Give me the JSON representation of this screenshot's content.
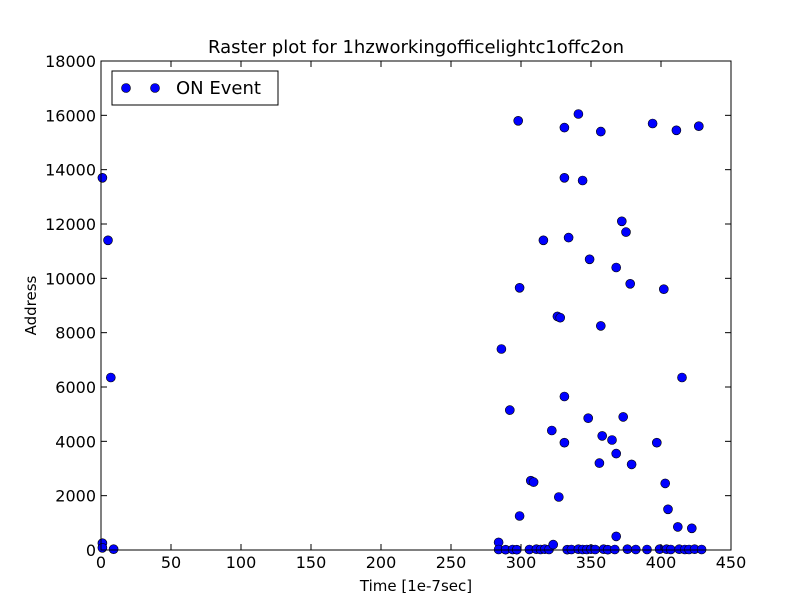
{
  "chart_data": {
    "type": "scatter",
    "title": "Raster plot for 1hzworkingofficelightc1offc2on",
    "xlabel": "Time [1e-7sec]",
    "ylabel": "Address",
    "xlim": [
      0,
      450
    ],
    "ylim": [
      0,
      18000
    ],
    "xticks": [
      0,
      50,
      100,
      150,
      200,
      250,
      300,
      350,
      400,
      450
    ],
    "yticks": [
      0,
      2000,
      4000,
      6000,
      8000,
      10000,
      12000,
      14000,
      16000,
      18000
    ],
    "grid": false,
    "legend_position": "top-left",
    "series": [
      {
        "name": "ON Event",
        "color": "#0000ff",
        "marker": "circle",
        "points": [
          [
            1,
            250
          ],
          [
            1,
            80
          ],
          [
            1,
            13700
          ],
          [
            5,
            11400
          ],
          [
            7,
            6350
          ],
          [
            9,
            30
          ],
          [
            284,
            280
          ],
          [
            284,
            20
          ],
          [
            286,
            7400
          ],
          [
            289,
            10
          ],
          [
            292,
            5150
          ],
          [
            294,
            20
          ],
          [
            297,
            10
          ],
          [
            298,
            15800
          ],
          [
            299,
            9650
          ],
          [
            299,
            1250
          ],
          [
            306,
            20
          ],
          [
            307,
            2550
          ],
          [
            309,
            2500
          ],
          [
            311,
            30
          ],
          [
            314,
            20
          ],
          [
            316,
            11400
          ],
          [
            317,
            30
          ],
          [
            320,
            20
          ],
          [
            322,
            4400
          ],
          [
            323,
            200
          ],
          [
            326,
            8600
          ],
          [
            327,
            1950
          ],
          [
            328,
            8550
          ],
          [
            331,
            15550
          ],
          [
            331,
            13700
          ],
          [
            331,
            5650
          ],
          [
            331,
            3950
          ],
          [
            333,
            10
          ],
          [
            334,
            11500
          ],
          [
            336,
            20
          ],
          [
            341,
            16050
          ],
          [
            341,
            30
          ],
          [
            344,
            13600
          ],
          [
            344,
            20
          ],
          [
            347,
            20
          ],
          [
            348,
            4850
          ],
          [
            349,
            10700
          ],
          [
            350,
            30
          ],
          [
            353,
            20
          ],
          [
            356,
            3200
          ],
          [
            357,
            15400
          ],
          [
            357,
            8250
          ],
          [
            358,
            4200
          ],
          [
            359,
            30
          ],
          [
            362,
            10
          ],
          [
            365,
            4050
          ],
          [
            367,
            20
          ],
          [
            368,
            10400
          ],
          [
            368,
            3550
          ],
          [
            368,
            500
          ],
          [
            372,
            12100
          ],
          [
            373,
            4900
          ],
          [
            375,
            11700
          ],
          [
            376,
            30
          ],
          [
            378,
            9800
          ],
          [
            379,
            3150
          ],
          [
            382,
            20
          ],
          [
            390,
            20
          ],
          [
            394,
            15700
          ],
          [
            397,
            3950
          ],
          [
            399,
            30
          ],
          [
            402,
            9600
          ],
          [
            403,
            2450
          ],
          [
            404,
            30
          ],
          [
            405,
            1500
          ],
          [
            407,
            20
          ],
          [
            411,
            15450
          ],
          [
            412,
            850
          ],
          [
            413,
            30
          ],
          [
            415,
            6350
          ],
          [
            417,
            20
          ],
          [
            420,
            20
          ],
          [
            422,
            800
          ],
          [
            424,
            30
          ],
          [
            427,
            15600
          ],
          [
            429,
            20
          ]
        ]
      }
    ]
  }
}
